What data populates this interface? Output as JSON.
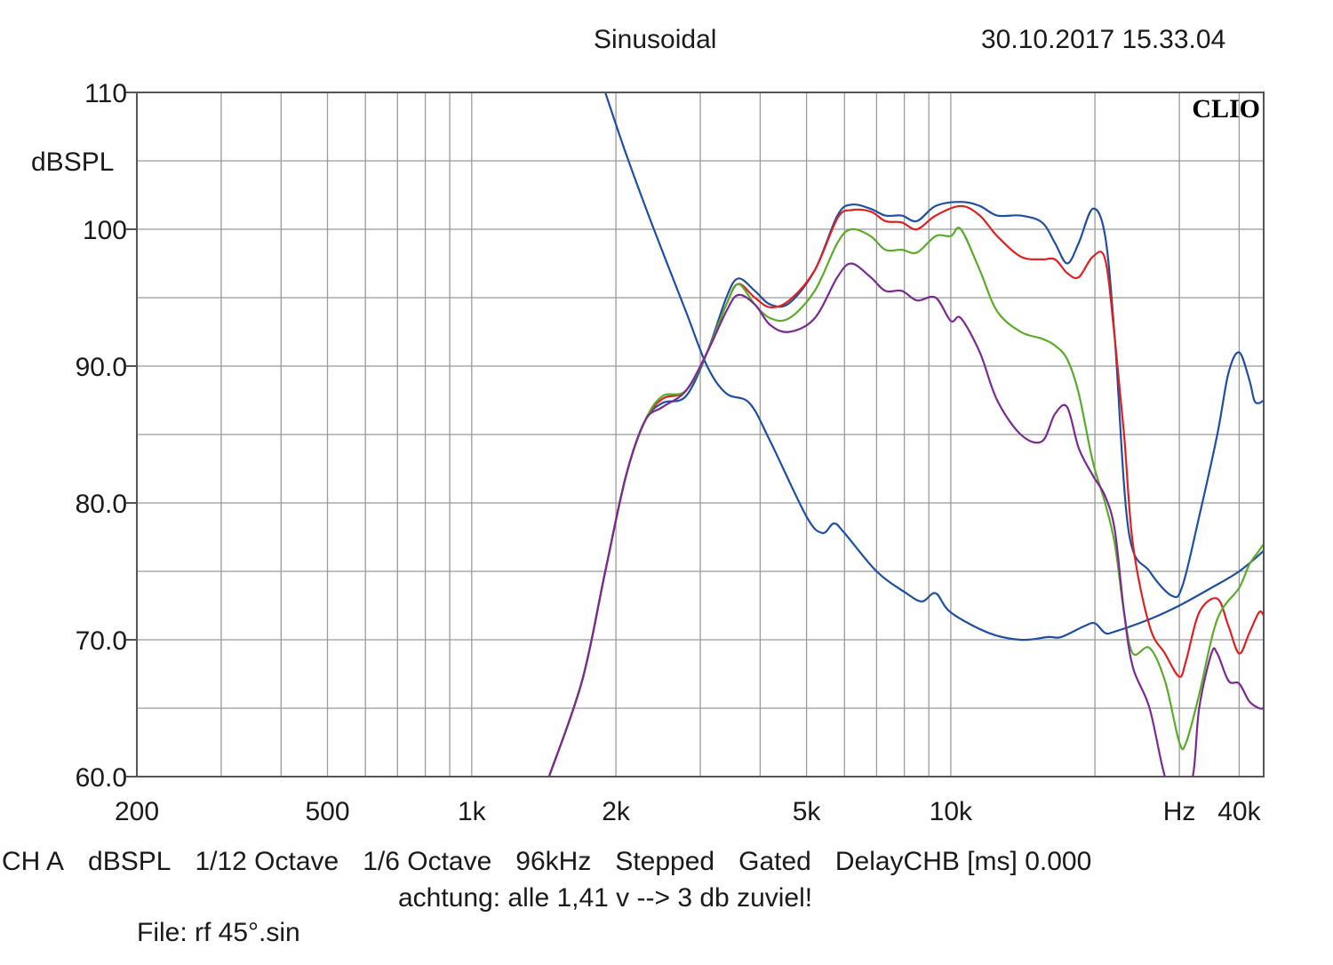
{
  "header": {
    "title": "Sinusoidal",
    "datetime": "30.10.2017 15.33.04"
  },
  "brand": "CLIO",
  "footer": {
    "settings": [
      "CH A",
      "dBSPL",
      "1/12 Octave",
      "1/6 Octave",
      "96kHz",
      "Stepped",
      "Gated",
      "DelayCHB [ms] 0.000"
    ],
    "note": "achtung: alle 1,41 v --> 3 db zuviel!",
    "file": "File: rf 45°.sin"
  },
  "chart_data": {
    "type": "line",
    "title": "Sinusoidal",
    "ylabel": "dBSPL",
    "xlabel": "Hz",
    "x_scale": "log",
    "xlim": [
      200,
      45000
    ],
    "ylim": [
      60,
      110
    ],
    "grid": true,
    "y_ticks": [
      {
        "value": 110,
        "label": "110"
      },
      {
        "value": 100,
        "label": "100"
      },
      {
        "value": 90,
        "label": "90.0"
      },
      {
        "value": 80,
        "label": "80.0"
      },
      {
        "value": 70,
        "label": "70.0"
      },
      {
        "value": 60,
        "label": "60.0"
      }
    ],
    "x_ticks": [
      {
        "value": 200,
        "label": "200"
      },
      {
        "value": 500,
        "label": "500"
      },
      {
        "value": 1000,
        "label": "1k"
      },
      {
        "value": 2000,
        "label": "2k"
      },
      {
        "value": 5000,
        "label": "5k"
      },
      {
        "value": 10000,
        "label": "10k"
      },
      {
        "value": 30000,
        "label": "Hz"
      },
      {
        "value": 40000,
        "label": "40k"
      }
    ],
    "series": [
      {
        "color": "#1f4fa0",
        "points": [
          [
            1900,
            110
          ],
          [
            2100,
            105.5
          ],
          [
            2400,
            100
          ],
          [
            2800,
            94
          ],
          [
            3100,
            90
          ],
          [
            3400,
            88
          ],
          [
            3800,
            87.3
          ],
          [
            4200,
            84.5
          ],
          [
            5000,
            79
          ],
          [
            5400,
            77.8
          ],
          [
            5700,
            78.5
          ],
          [
            6000,
            77.8
          ],
          [
            7000,
            75
          ],
          [
            8000,
            73.5
          ],
          [
            8700,
            72.8
          ],
          [
            9300,
            73.4
          ],
          [
            10000,
            72
          ],
          [
            12000,
            70.5
          ],
          [
            14000,
            70
          ],
          [
            16000,
            70.2
          ],
          [
            17000,
            70.2
          ],
          [
            19000,
            71
          ],
          [
            20000,
            71.2
          ],
          [
            21000,
            70.5
          ],
          [
            22000,
            70.6
          ],
          [
            26000,
            71.5
          ],
          [
            30000,
            72.5
          ],
          [
            35000,
            73.8
          ],
          [
            40000,
            75
          ],
          [
            45000,
            76.5
          ]
        ]
      },
      {
        "color": "#1f4fa0",
        "points": [
          [
            1450,
            60
          ],
          [
            1700,
            67
          ],
          [
            1900,
            75
          ],
          [
            2100,
            82
          ],
          [
            2300,
            86
          ],
          [
            2500,
            87.3
          ],
          [
            2800,
            87.8
          ],
          [
            3100,
            91
          ],
          [
            3400,
            95
          ],
          [
            3600,
            96.4
          ],
          [
            3900,
            95.5
          ],
          [
            4200,
            94.5
          ],
          [
            4600,
            94.6
          ],
          [
            5200,
            97
          ],
          [
            5800,
            101
          ],
          [
            6200,
            101.8
          ],
          [
            6800,
            101.5
          ],
          [
            7300,
            101
          ],
          [
            7900,
            101
          ],
          [
            8500,
            100.6
          ],
          [
            9300,
            101.7
          ],
          [
            10500,
            102
          ],
          [
            11500,
            101.7
          ],
          [
            12500,
            101
          ],
          [
            14000,
            101
          ],
          [
            15500,
            100.5
          ],
          [
            16500,
            99
          ],
          [
            17500,
            97.5
          ],
          [
            18500,
            99
          ],
          [
            19800,
            101.5
          ],
          [
            21000,
            99.5
          ],
          [
            22000,
            92
          ],
          [
            23500,
            78
          ],
          [
            26000,
            75
          ],
          [
            29000,
            73.2
          ],
          [
            30500,
            74
          ],
          [
            33000,
            79
          ],
          [
            36000,
            85
          ],
          [
            38000,
            89.5
          ],
          [
            40000,
            91
          ],
          [
            42000,
            89
          ],
          [
            43000,
            87.5
          ],
          [
            44000,
            87.3
          ],
          [
            45000,
            87.5
          ]
        ]
      },
      {
        "color": "#e02020",
        "points": [
          [
            1450,
            60
          ],
          [
            1700,
            67
          ],
          [
            1900,
            75
          ],
          [
            2100,
            82
          ],
          [
            2300,
            86
          ],
          [
            2500,
            87.6
          ],
          [
            2800,
            88.2
          ],
          [
            3100,
            91
          ],
          [
            3400,
            94.5
          ],
          [
            3600,
            96
          ],
          [
            3900,
            95
          ],
          [
            4200,
            94.3
          ],
          [
            4600,
            94.8
          ],
          [
            5200,
            97
          ],
          [
            5800,
            100.8
          ],
          [
            6200,
            101.4
          ],
          [
            6800,
            101.3
          ],
          [
            7300,
            100.6
          ],
          [
            7900,
            100.5
          ],
          [
            8500,
            100
          ],
          [
            9300,
            101
          ],
          [
            10500,
            101.7
          ],
          [
            11500,
            101
          ],
          [
            12500,
            99.5
          ],
          [
            14000,
            98
          ],
          [
            15500,
            97.8
          ],
          [
            16500,
            97.8
          ],
          [
            17500,
            96.8
          ],
          [
            18500,
            96.5
          ],
          [
            19800,
            98
          ],
          [
            21000,
            97.8
          ],
          [
            22000,
            92
          ],
          [
            23000,
            85
          ],
          [
            24000,
            77
          ],
          [
            26000,
            71
          ],
          [
            28000,
            69
          ],
          [
            30000,
            67.3
          ],
          [
            31000,
            68.5
          ],
          [
            33000,
            72
          ],
          [
            36000,
            73
          ],
          [
            38000,
            71
          ],
          [
            40000,
            69
          ],
          [
            42000,
            70.5
          ],
          [
            44000,
            72
          ],
          [
            45000,
            71.8
          ]
        ]
      },
      {
        "color": "#5aab2a",
        "points": [
          [
            1450,
            60
          ],
          [
            1700,
            67
          ],
          [
            1900,
            75
          ],
          [
            2100,
            82
          ],
          [
            2300,
            86
          ],
          [
            2500,
            87.8
          ],
          [
            2800,
            88.2
          ],
          [
            3100,
            91
          ],
          [
            3400,
            94.5
          ],
          [
            3600,
            96
          ],
          [
            3900,
            94.5
          ],
          [
            4200,
            93.5
          ],
          [
            4600,
            93.5
          ],
          [
            5200,
            95.5
          ],
          [
            5800,
            99
          ],
          [
            6200,
            100
          ],
          [
            6800,
            99.5
          ],
          [
            7300,
            98.5
          ],
          [
            7900,
            98.5
          ],
          [
            8500,
            98.3
          ],
          [
            9300,
            99.5
          ],
          [
            10000,
            99.5
          ],
          [
            10500,
            100
          ],
          [
            11500,
            97
          ],
          [
            12500,
            94
          ],
          [
            14000,
            92.5
          ],
          [
            15500,
            92
          ],
          [
            16500,
            91.5
          ],
          [
            17500,
            90.5
          ],
          [
            18500,
            88
          ],
          [
            19800,
            83
          ],
          [
            21000,
            80
          ],
          [
            22000,
            77
          ],
          [
            23000,
            72
          ],
          [
            24000,
            69
          ],
          [
            26000,
            69.4
          ],
          [
            28000,
            67
          ],
          [
            30000,
            62.5
          ],
          [
            31000,
            62.5
          ],
          [
            33000,
            66
          ],
          [
            36000,
            71.5
          ],
          [
            40000,
            73.8
          ],
          [
            42000,
            75.5
          ],
          [
            44000,
            76.5
          ],
          [
            45000,
            77
          ]
        ]
      },
      {
        "color": "#7a2a90",
        "points": [
          [
            1450,
            60
          ],
          [
            1700,
            67
          ],
          [
            1900,
            75
          ],
          [
            2100,
            82
          ],
          [
            2300,
            86
          ],
          [
            2500,
            87
          ],
          [
            2800,
            88.2
          ],
          [
            3100,
            91
          ],
          [
            3400,
            94
          ],
          [
            3600,
            95.2
          ],
          [
            3900,
            94.5
          ],
          [
            4200,
            93
          ],
          [
            4600,
            92.5
          ],
          [
            5200,
            93.5
          ],
          [
            5800,
            96.5
          ],
          [
            6200,
            97.5
          ],
          [
            6800,
            96.5
          ],
          [
            7300,
            95.5
          ],
          [
            7900,
            95.5
          ],
          [
            8500,
            94.8
          ],
          [
            9300,
            95
          ],
          [
            10000,
            93.3
          ],
          [
            10500,
            93.5
          ],
          [
            11500,
            91
          ],
          [
            12500,
            87.5
          ],
          [
            14000,
            85
          ],
          [
            15500,
            84.5
          ],
          [
            16500,
            86.5
          ],
          [
            17500,
            87
          ],
          [
            18500,
            84
          ],
          [
            19800,
            82
          ],
          [
            21000,
            80.5
          ],
          [
            22000,
            78
          ],
          [
            23000,
            72
          ],
          [
            24000,
            68
          ],
          [
            26000,
            65
          ],
          [
            28000,
            60
          ],
          [
            30000,
            58
          ],
          [
            32000,
            60
          ],
          [
            33000,
            65
          ],
          [
            35000,
            69
          ],
          [
            36000,
            69
          ],
          [
            38000,
            67
          ],
          [
            40000,
            66.8
          ],
          [
            42000,
            65.5
          ],
          [
            44000,
            65
          ],
          [
            45000,
            65
          ]
        ]
      }
    ]
  }
}
